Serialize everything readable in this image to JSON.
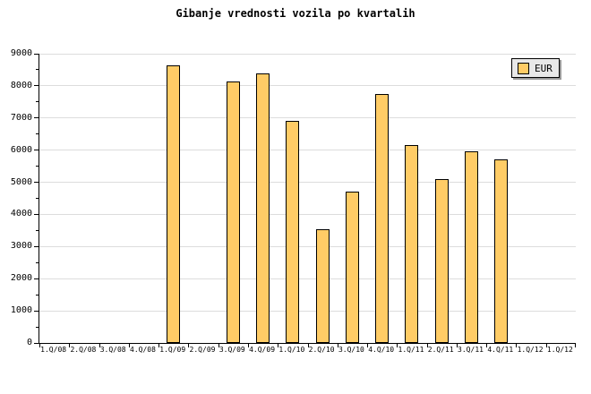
{
  "title": "Gibanje vrednosti vozila po kvartalih",
  "legend": {
    "label": "EUR"
  },
  "colors": {
    "bar_fill": "#FFCC66",
    "bar_border": "#000000",
    "gridline": "#DDDDDD",
    "axis": "#000000",
    "legend_bg": "#E8E8E8",
    "legend_shadow": "#999999",
    "background": "#FFFFFF",
    "text": "#000000"
  },
  "chart_data": {
    "type": "bar",
    "title": "Gibanje vrednosti vozila po kvartalih",
    "categories": [
      "1.Q/08",
      "2.Q/08",
      "3.Q/08",
      "4.Q/08",
      "1.Q/09",
      "2.Q/09",
      "3.Q/09",
      "4.Q/09",
      "1.Q/10",
      "2.Q/10",
      "3.Q/10",
      "4.Q/10",
      "1.Q/11",
      "2.Q/11",
      "3.Q/11",
      "4.Q/11",
      "1.Q/12",
      "1.Q/12"
    ],
    "series": [
      {
        "name": "EUR",
        "color": "#FFCC66",
        "values": [
          null,
          null,
          null,
          null,
          8650,
          null,
          8150,
          8400,
          6900,
          3550,
          4700,
          7750,
          6150,
          5100,
          5950,
          5700,
          null,
          null
        ]
      }
    ],
    "xlabel": "",
    "ylabel": "",
    "ylim": [
      0,
      9000
    ],
    "ytick_step": 1000,
    "ytick_minor_step": 500,
    "ytick_labels": [
      "0",
      "1000",
      "2000",
      "3000",
      "4000",
      "5000",
      "6000",
      "7000",
      "8000",
      "9000"
    ],
    "grid": true,
    "legend_position": "top-right"
  }
}
